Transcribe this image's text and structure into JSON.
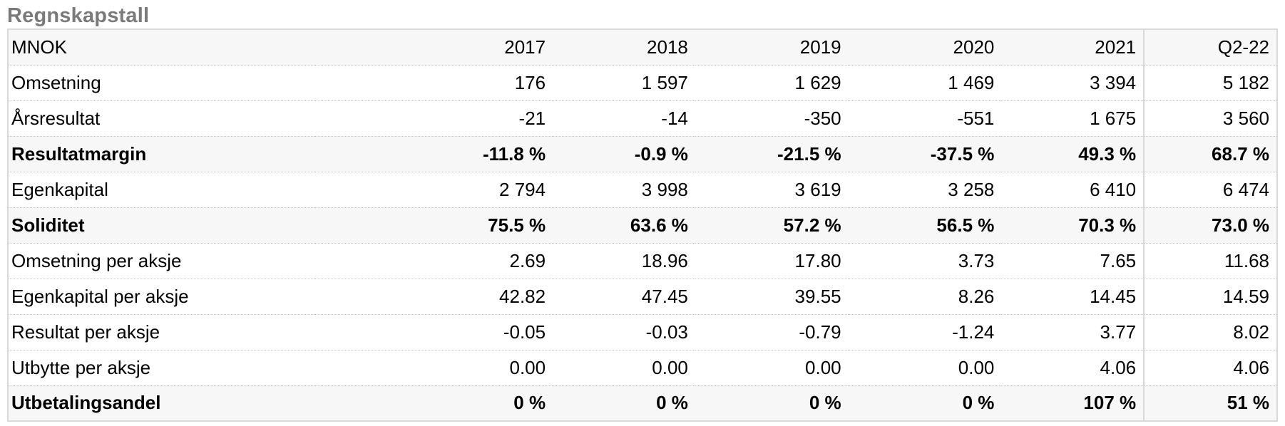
{
  "title": "Regnskapstall",
  "header": [
    "MNOK",
    "2017",
    "2018",
    "2019",
    "2020",
    "2021",
    "Q2-22"
  ],
  "rows": [
    {
      "label": "Omsetning",
      "bold": false,
      "values": [
        "176",
        "1 597",
        "1 629",
        "1 469",
        "3 394",
        "5 182"
      ]
    },
    {
      "label": "Årsresultat",
      "bold": false,
      "values": [
        "-21",
        "-14",
        "-350",
        "-551",
        "1 675",
        "3 560"
      ]
    },
    {
      "label": "Resultatmargin",
      "bold": true,
      "values": [
        "-11.8 %",
        "-0.9 %",
        "-21.5 %",
        "-37.5 %",
        "49.3 %",
        "68.7 %"
      ]
    },
    {
      "label": "Egenkapital",
      "bold": false,
      "values": [
        "2 794",
        "3 998",
        "3 619",
        "3 258",
        "6 410",
        "6 474"
      ]
    },
    {
      "label": "Soliditet",
      "bold": true,
      "values": [
        "75.5 %",
        "63.6 %",
        "57.2 %",
        "56.5 %",
        "70.3 %",
        "73.0 %"
      ]
    },
    {
      "label": "Omsetning per aksje",
      "bold": false,
      "values": [
        "2.69",
        "18.96",
        "17.80",
        "3.73",
        "7.65",
        "11.68"
      ]
    },
    {
      "label": "Egenkapital per aksje",
      "bold": false,
      "values": [
        "42.82",
        "47.45",
        "39.55",
        "8.26",
        "14.45",
        "14.59"
      ]
    },
    {
      "label": "Resultat per aksje",
      "bold": false,
      "values": [
        "-0.05",
        "-0.03",
        "-0.79",
        "-1.24",
        "3.77",
        "8.02"
      ]
    },
    {
      "label": "Utbytte per aksje",
      "bold": false,
      "values": [
        "0.00",
        "0.00",
        "0.00",
        "0.00",
        "4.06",
        "4.06"
      ]
    },
    {
      "label": "Utbetalingsandel",
      "bold": true,
      "values": [
        "0 %",
        "0 %",
        "0 %",
        "0 %",
        "107 %",
        "51 %"
      ]
    }
  ]
}
